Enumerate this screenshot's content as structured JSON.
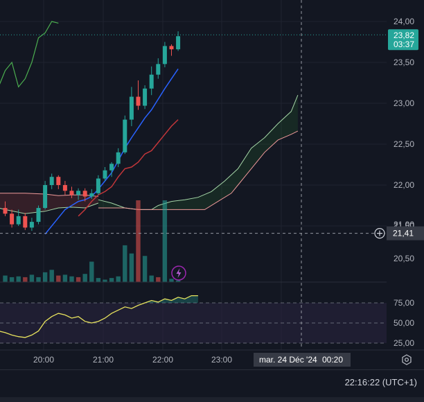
{
  "chart_data": {
    "type": "candlestick",
    "price_axis": {
      "ticks": [
        "24,00",
        "23,50",
        "23,00",
        "22,50",
        "22,00",
        "21,50",
        "21,00",
        "20,50"
      ],
      "last_price": "23,82",
      "countdown": "03:37",
      "crosshair_price": "21,41"
    },
    "time_axis": {
      "ticks": [
        "20:00",
        "21:00",
        "22:00",
        "23:00",
        "00:20"
      ],
      "crosshair_label": "mar. 24 Déc '24"
    },
    "candles": [
      {
        "o": 21.72,
        "h": 21.8,
        "l": 21.62,
        "c": 21.65
      },
      {
        "o": 21.65,
        "h": 21.7,
        "l": 21.48,
        "c": 21.52
      },
      {
        "o": 21.52,
        "h": 21.7,
        "l": 21.5,
        "c": 21.62
      },
      {
        "o": 21.62,
        "h": 21.66,
        "l": 21.45,
        "c": 21.48
      },
      {
        "o": 21.48,
        "h": 21.6,
        "l": 21.44,
        "c": 21.55
      },
      {
        "o": 21.55,
        "h": 21.75,
        "l": 21.52,
        "c": 21.72
      },
      {
        "o": 21.72,
        "h": 22.05,
        "l": 21.7,
        "c": 22.0
      },
      {
        "o": 22.0,
        "h": 22.14,
        "l": 21.95,
        "c": 22.1
      },
      {
        "o": 22.1,
        "h": 22.12,
        "l": 21.95,
        "c": 22.0
      },
      {
        "o": 22.0,
        "h": 22.05,
        "l": 21.88,
        "c": 21.93
      },
      {
        "o": 21.93,
        "h": 21.98,
        "l": 21.84,
        "c": 21.88
      },
      {
        "o": 21.88,
        "h": 21.96,
        "l": 21.82,
        "c": 21.93
      },
      {
        "o": 21.93,
        "h": 21.96,
        "l": 21.8,
        "c": 21.86
      },
      {
        "o": 21.86,
        "h": 21.95,
        "l": 21.83,
        "c": 21.9
      },
      {
        "o": 21.9,
        "h": 22.12,
        "l": 21.88,
        "c": 22.08
      },
      {
        "o": 22.08,
        "h": 22.22,
        "l": 22.05,
        "c": 22.18
      },
      {
        "o": 22.18,
        "h": 22.28,
        "l": 22.1,
        "c": 22.26
      },
      {
        "o": 22.26,
        "h": 22.45,
        "l": 22.22,
        "c": 22.4
      },
      {
        "o": 22.4,
        "h": 22.85,
        "l": 22.38,
        "c": 22.8
      },
      {
        "o": 22.8,
        "h": 23.2,
        "l": 22.72,
        "c": 23.08
      },
      {
        "o": 23.08,
        "h": 23.28,
        "l": 22.92,
        "c": 22.97
      },
      {
        "o": 22.97,
        "h": 23.22,
        "l": 22.93,
        "c": 23.18
      },
      {
        "o": 23.18,
        "h": 23.45,
        "l": 23.1,
        "c": 23.35
      },
      {
        "o": 23.35,
        "h": 23.55,
        "l": 23.3,
        "c": 23.48
      },
      {
        "o": 23.48,
        "h": 23.75,
        "l": 23.44,
        "c": 23.7
      },
      {
        "o": 23.7,
        "h": 23.72,
        "l": 23.58,
        "c": 23.66
      },
      {
        "o": 23.66,
        "h": 23.88,
        "l": 23.64,
        "c": 23.82
      }
    ],
    "volume": [
      0.08,
      0.06,
      0.07,
      0.06,
      0.09,
      0.06,
      0.12,
      0.15,
      0.08,
      0.09,
      0.07,
      0.06,
      0.1,
      0.25,
      0.05,
      0.03,
      0.05,
      0.07,
      0.45,
      0.35,
      1.0,
      0.32,
      0.08,
      0.06,
      1.0,
      0.04,
      0.02
    ],
    "volume_colors": [
      "up",
      "up",
      "up",
      "down",
      "up",
      "up",
      "up",
      "up",
      "down",
      "up",
      "up",
      "down",
      "up",
      "up",
      "up",
      "up",
      "up",
      "up",
      "up",
      "up",
      "down",
      "up",
      "up",
      "down",
      "up",
      "up",
      "up"
    ],
    "ema_fast": [
      [
        6,
        21.4
      ],
      [
        7,
        21.5
      ],
      [
        8,
        21.6
      ],
      [
        9,
        21.7
      ],
      [
        10,
        21.75
      ],
      [
        11,
        21.8
      ],
      [
        12,
        21.82
      ],
      [
        13,
        21.86
      ],
      [
        14,
        21.95
      ],
      [
        15,
        22.05
      ],
      [
        16,
        22.15
      ],
      [
        17,
        22.3
      ],
      [
        18,
        22.45
      ],
      [
        19,
        22.58
      ],
      [
        20,
        22.7
      ],
      [
        21,
        22.82
      ],
      [
        22,
        22.92
      ],
      [
        23,
        23.05
      ],
      [
        24,
        23.18
      ],
      [
        25,
        23.3
      ],
      [
        26,
        23.42
      ]
    ],
    "ema_slow": [
      [
        11,
        21.62
      ],
      [
        12,
        21.7
      ],
      [
        13,
        21.8
      ],
      [
        14,
        21.88
      ],
      [
        15,
        21.92
      ],
      [
        16,
        21.98
      ],
      [
        17,
        22.1
      ],
      [
        18,
        22.2
      ],
      [
        19,
        22.22
      ],
      [
        20,
        22.28
      ],
      [
        21,
        22.38
      ],
      [
        22,
        22.42
      ],
      [
        23,
        22.52
      ],
      [
        24,
        22.62
      ],
      [
        25,
        22.72
      ],
      [
        26,
        22.8
      ]
    ],
    "green_line": [
      [
        -4,
        22.5
      ],
      [
        -2,
        23.0
      ],
      [
        0,
        23.4
      ],
      [
        1,
        23.5
      ],
      [
        2,
        23.2
      ],
      [
        3,
        23.3
      ],
      [
        4,
        23.5
      ],
      [
        5,
        23.8
      ],
      [
        6,
        23.86
      ],
      [
        7,
        24.0
      ],
      [
        8,
        23.98
      ]
    ],
    "left_band_upper": [
      [
        -5,
        21.9
      ],
      [
        0,
        21.9
      ],
      [
        3,
        21.9
      ],
      [
        6,
        21.89
      ],
      [
        8,
        21.87
      ],
      [
        10,
        21.88
      ],
      [
        12,
        21.88
      ],
      [
        14,
        21.86
      ]
    ],
    "left_band_lower": [
      [
        -5,
        21.8
      ],
      [
        0,
        21.7
      ],
      [
        3,
        21.65
      ],
      [
        6,
        21.68
      ],
      [
        8,
        21.72
      ],
      [
        10,
        21.73
      ],
      [
        12,
        21.72
      ],
      [
        14,
        21.78
      ]
    ],
    "cloud_upper": [
      [
        14,
        21.82
      ],
      [
        16,
        21.78
      ],
      [
        18,
        21.72
      ],
      [
        20,
        21.7
      ],
      [
        22,
        21.7
      ],
      [
        23,
        21.75
      ],
      [
        25,
        21.8
      ],
      [
        27,
        21.82
      ],
      [
        29,
        21.85
      ],
      [
        31,
        21.92
      ],
      [
        33,
        22.05
      ],
      [
        35,
        22.2
      ],
      [
        37,
        22.45
      ],
      [
        39,
        22.58
      ],
      [
        41,
        22.75
      ],
      [
        43,
        22.9
      ],
      [
        44,
        23.1
      ]
    ],
    "cloud_lower": [
      [
        14,
        21.72
      ],
      [
        16,
        21.72
      ],
      [
        18,
        21.72
      ],
      [
        20,
        21.7
      ],
      [
        22,
        21.7
      ],
      [
        24,
        21.7
      ],
      [
        26,
        21.7
      ],
      [
        28,
        21.7
      ],
      [
        30,
        21.7
      ],
      [
        32,
        21.8
      ],
      [
        34,
        21.9
      ],
      [
        35,
        22.0
      ],
      [
        37,
        22.2
      ],
      [
        39,
        22.4
      ],
      [
        41,
        22.55
      ],
      [
        43,
        22.62
      ],
      [
        44,
        22.66
      ]
    ],
    "oscillator": {
      "ticks": [
        "75,00",
        "50,00",
        "25,00"
      ],
      "range": [
        0,
        100
      ],
      "upper_level": 70,
      "mid_level": 50,
      "lower_level": 30,
      "values": [
        [
          -5,
          50
        ],
        [
          -3,
          48
        ],
        [
          -2,
          46
        ],
        [
          -1,
          40
        ],
        [
          0,
          38
        ],
        [
          1,
          35
        ],
        [
          2,
          33
        ],
        [
          3,
          32
        ],
        [
          4,
          35
        ],
        [
          5,
          40
        ],
        [
          6,
          52
        ],
        [
          7,
          58
        ],
        [
          8,
          62
        ],
        [
          9,
          60
        ],
        [
          10,
          56
        ],
        [
          11,
          58
        ],
        [
          12,
          52
        ],
        [
          13,
          50
        ],
        [
          14,
          52
        ],
        [
          15,
          56
        ],
        [
          16,
          62
        ],
        [
          17,
          66
        ],
        [
          18,
          70
        ],
        [
          19,
          68
        ],
        [
          20,
          72
        ],
        [
          21,
          75
        ],
        [
          22,
          78
        ],
        [
          23,
          76
        ],
        [
          24,
          80
        ],
        [
          25,
          78
        ],
        [
          26,
          82
        ],
        [
          27,
          80
        ],
        [
          28,
          84
        ],
        [
          29,
          84
        ]
      ]
    },
    "colors": {
      "up": "#26a69a",
      "down": "#ef5350",
      "ema_fast": "#2962ff",
      "ema_slow": "#c2363a",
      "green_line": "#4caf50",
      "oscillator_line": "#e7e25d",
      "last_price_bg": "#26a69a",
      "oscillator_bg": "#2a2540"
    }
  },
  "footer": {
    "clock": "22:16:22 (UTC+1)"
  }
}
